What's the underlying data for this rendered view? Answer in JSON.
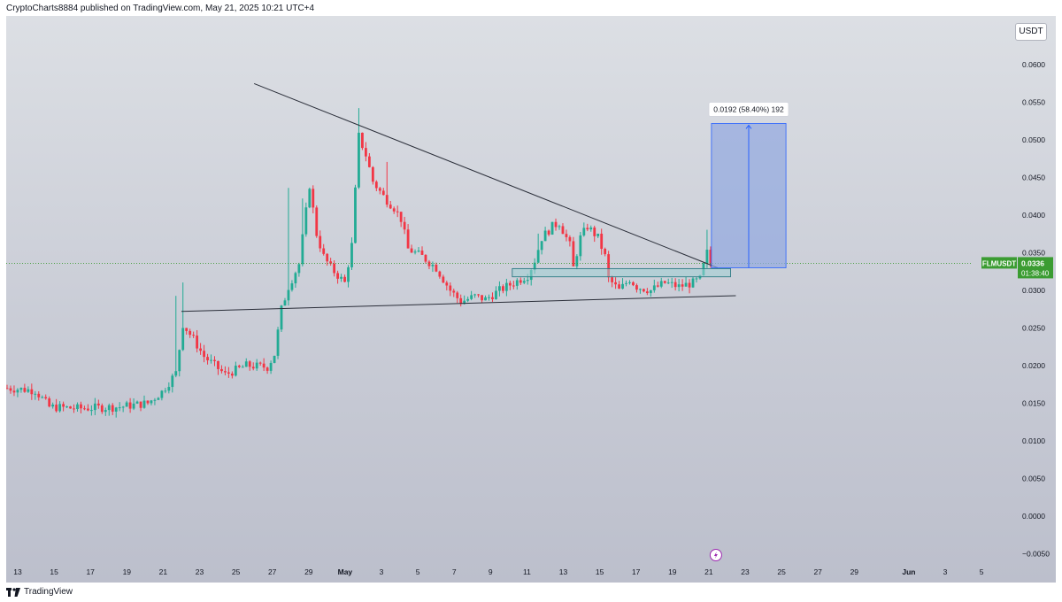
{
  "header": {
    "published": "CryptoCharts8884 published on TradingView.com, May 21, 2025 10:21 UTC+4"
  },
  "currency": "USDT",
  "footer": {
    "brand": "TradingView"
  },
  "colors": {
    "up": "#22ab94",
    "down": "#f23645",
    "price_badge": "#3b9c32",
    "measure_fill": "#91a8e0",
    "measure_line": "#2962ff",
    "zone_fill": "#9fd0d3"
  },
  "icons": [
    "lightning-icon",
    "tradingview-logo-icon"
  ],
  "chart_data": {
    "type": "candlestick",
    "symbol": "FLMUSDT",
    "last_price": "0.0336",
    "countdown": "01:38:40",
    "ylim": [
      -0.0065,
      0.0665
    ],
    "y_ticks": [
      "0.0600",
      "0.0550",
      "0.0500",
      "0.0450",
      "0.0400",
      "0.0350",
      "0.0300",
      "0.0250",
      "0.0200",
      "0.0150",
      "0.0100",
      "0.0050",
      "0.0000",
      "−0.0050"
    ],
    "x_ticks": [
      "13",
      "15",
      "17",
      "19",
      "21",
      "23",
      "25",
      "27",
      "29",
      "May",
      "3",
      "5",
      "7",
      "9",
      "11",
      "13",
      "15",
      "17",
      "19",
      "21",
      "23",
      "25",
      "27",
      "29",
      "Jun",
      "3",
      "5"
    ],
    "anchors": [
      [
        0,
        0.017
      ],
      [
        8,
        0.0167
      ],
      [
        12,
        0.0145
      ],
      [
        20,
        0.0143
      ],
      [
        32,
        0.0145
      ],
      [
        40,
        0.015
      ],
      [
        44,
        0.0165
      ],
      [
        48,
        0.019
      ],
      [
        50,
        0.0255
      ],
      [
        53,
        0.0235
      ],
      [
        56,
        0.0212
      ],
      [
        62,
        0.0188
      ],
      [
        68,
        0.02
      ],
      [
        74,
        0.0198
      ],
      [
        76,
        0.0215
      ],
      [
        78,
        0.0275
      ],
      [
        80,
        0.0305
      ],
      [
        83,
        0.0335
      ],
      [
        86,
        0.044
      ],
      [
        88,
        0.0375
      ],
      [
        90,
        0.0345
      ],
      [
        92,
        0.033
      ],
      [
        96,
        0.031
      ],
      [
        98,
        0.036
      ],
      [
        100,
        0.0505
      ],
      [
        102,
        0.048
      ],
      [
        104,
        0.0445
      ],
      [
        107,
        0.0425
      ],
      [
        110,
        0.041
      ],
      [
        112,
        0.0395
      ],
      [
        114,
        0.0355
      ],
      [
        118,
        0.0345
      ],
      [
        122,
        0.033
      ],
      [
        126,
        0.03
      ],
      [
        129,
        0.0285
      ],
      [
        133,
        0.0292
      ],
      [
        136,
        0.0288
      ],
      [
        140,
        0.03
      ],
      [
        144,
        0.031
      ],
      [
        148,
        0.032
      ],
      [
        150,
        0.034
      ],
      [
        152,
        0.037
      ],
      [
        155,
        0.0385
      ],
      [
        157,
        0.039
      ],
      [
        160,
        0.036
      ],
      [
        161,
        0.033
      ],
      [
        163,
        0.037
      ],
      [
        165,
        0.0385
      ],
      [
        168,
        0.037
      ],
      [
        170,
        0.0345
      ],
      [
        171,
        0.0315
      ],
      [
        174,
        0.03
      ],
      [
        177,
        0.0315
      ],
      [
        179,
        0.0305
      ],
      [
        183,
        0.03
      ],
      [
        187,
        0.031
      ],
      [
        191,
        0.0305
      ],
      [
        195,
        0.031
      ],
      [
        197,
        0.0315
      ],
      [
        199,
        0.035
      ],
      [
        200,
        0.0336
      ]
    ],
    "trendlines": [
      {
        "name": "descending-resistance",
        "from": [
          "Apr 26",
          0.0575
        ],
        "to": [
          "May 21",
          0.033
        ]
      },
      {
        "name": "ascending-support",
        "from": [
          "Apr 22",
          0.0272
        ],
        "to": [
          "May 22",
          0.0293
        ]
      }
    ],
    "zone": {
      "low": 0.0318,
      "high": 0.0329,
      "from": "May 10",
      "to": "May 22"
    },
    "measure": {
      "label": "0.0192 (58.40%) 192",
      "from_price": 0.033,
      "to_price": 0.0522
    }
  }
}
